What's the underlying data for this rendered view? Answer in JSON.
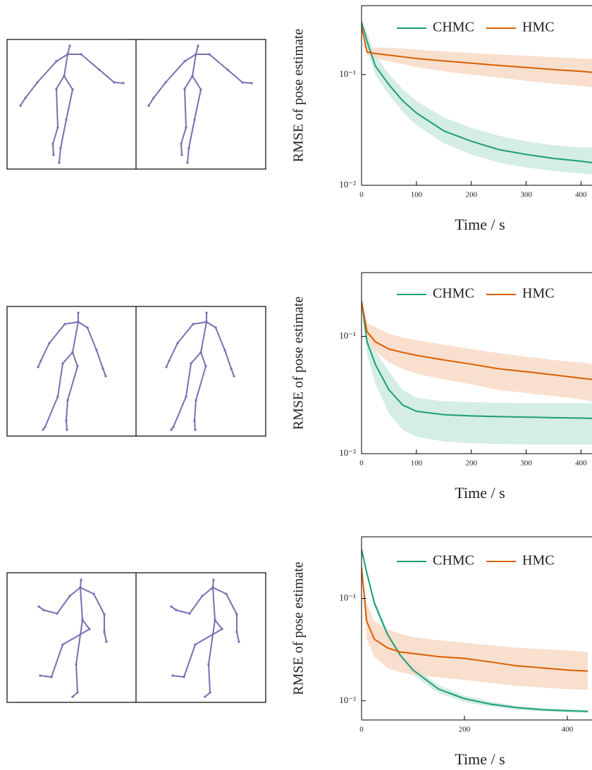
{
  "chart_data": [
    {
      "type": "line",
      "yscale": "log",
      "ylabel": "RMSE of pose estimate",
      "xlabel": "Time / s",
      "x": [
        0,
        10,
        25,
        50,
        75,
        100,
        150,
        200,
        250,
        300,
        350,
        400,
        420
      ],
      "xlim": [
        0,
        420
      ],
      "xticks": [
        0,
        100,
        200,
        300,
        400
      ],
      "ylim": [
        0.01,
        0.42
      ],
      "yticks": [
        {
          "value": 0.1,
          "label": "10⁻¹"
        },
        {
          "value": 0.01,
          "label": "10⁻²"
        }
      ],
      "series": [
        {
          "name": "CHMC",
          "color": "#1b9e77",
          "band_color": "#cdeae0",
          "values": [
            0.3,
            0.2,
            0.12,
            0.081,
            0.058,
            0.045,
            0.031,
            0.025,
            0.021,
            0.019,
            0.0175,
            0.0165,
            0.016
          ],
          "upper": [
            0.3,
            0.24,
            0.15,
            0.1,
            0.074,
            0.058,
            0.041,
            0.033,
            0.028,
            0.025,
            0.023,
            0.022,
            0.022
          ],
          "lower": [
            0.3,
            0.17,
            0.1,
            0.066,
            0.046,
            0.035,
            0.024,
            0.019,
            0.016,
            0.0145,
            0.0135,
            0.0128,
            0.0125
          ]
        },
        {
          "name": "HMC",
          "color": "#d95f02",
          "band_color": "#f8d9c5",
          "values": [
            0.27,
            0.16,
            0.155,
            0.15,
            0.145,
            0.14,
            0.133,
            0.127,
            0.121,
            0.116,
            0.111,
            0.107,
            0.105
          ],
          "upper": [
            0.27,
            0.17,
            0.175,
            0.175,
            0.172,
            0.168,
            0.162,
            0.157,
            0.152,
            0.148,
            0.144,
            0.14,
            0.138
          ],
          "lower": [
            0.27,
            0.15,
            0.14,
            0.132,
            0.124,
            0.117,
            0.107,
            0.1,
            0.094,
            0.088,
            0.083,
            0.079,
            0.077
          ]
        }
      ]
    },
    {
      "type": "line",
      "yscale": "log",
      "ylabel": "RMSE of pose estimate",
      "xlabel": "Time / s",
      "x": [
        0,
        10,
        25,
        50,
        75,
        100,
        150,
        200,
        250,
        300,
        350,
        400,
        420
      ],
      "xlim": [
        0,
        420
      ],
      "xticks": [
        0,
        100,
        200,
        300,
        400
      ],
      "ylim": [
        0.01,
        0.35
      ],
      "yticks": [
        {
          "value": 0.1,
          "label": "10⁻¹"
        },
        {
          "value": 0.01,
          "label": "10⁻²"
        }
      ],
      "series": [
        {
          "name": "CHMC",
          "color": "#1b9e77",
          "band_color": "#cdeae0",
          "values": [
            0.2,
            0.09,
            0.058,
            0.035,
            0.026,
            0.023,
            0.0215,
            0.021,
            0.0207,
            0.0205,
            0.0203,
            0.0201,
            0.02
          ],
          "upper": [
            0.2,
            0.11,
            0.075,
            0.05,
            0.035,
            0.03,
            0.028,
            0.0275,
            0.0272,
            0.027,
            0.027,
            0.027,
            0.027
          ],
          "lower": [
            0.2,
            0.07,
            0.04,
            0.022,
            0.016,
            0.014,
            0.0127,
            0.0123,
            0.0121,
            0.012,
            0.012,
            0.012,
            0.012
          ]
        },
        {
          "name": "HMC",
          "color": "#d95f02",
          "band_color": "#f8d9c5",
          "values": [
            0.2,
            0.11,
            0.09,
            0.078,
            0.073,
            0.069,
            0.063,
            0.058,
            0.053,
            0.05,
            0.047,
            0.044,
            0.043
          ],
          "upper": [
            0.2,
            0.13,
            0.12,
            0.105,
            0.098,
            0.093,
            0.085,
            0.078,
            0.072,
            0.067,
            0.063,
            0.06,
            0.058
          ],
          "lower": [
            0.2,
            0.095,
            0.075,
            0.06,
            0.053,
            0.048,
            0.043,
            0.039,
            0.035,
            0.033,
            0.031,
            0.029,
            0.028
          ]
        }
      ]
    },
    {
      "type": "line",
      "yscale": "log",
      "ylabel": "RMSE of pose estimate",
      "xlabel": "Time / s",
      "x": [
        0,
        10,
        25,
        50,
        75,
        100,
        150,
        200,
        250,
        300,
        350,
        400,
        440
      ],
      "xlim": [
        0,
        448
      ],
      "xticks": [
        0,
        200,
        400
      ],
      "ylim": [
        0.0065,
        0.4
      ],
      "yticks": [
        {
          "value": 0.1,
          "label": "10⁻¹"
        },
        {
          "value": 0.01,
          "label": "10⁻²"
        }
      ],
      "series": [
        {
          "name": "CHMC",
          "color": "#1b9e77",
          "band_color": "#cdeae0",
          "values": [
            0.3,
            0.18,
            0.09,
            0.045,
            0.028,
            0.02,
            0.013,
            0.0105,
            0.0093,
            0.0086,
            0.0082,
            0.008,
            0.0079
          ],
          "upper": [
            0.3,
            0.19,
            0.097,
            0.05,
            0.031,
            0.022,
            0.0142,
            0.0113,
            0.0099,
            0.009,
            0.0085,
            0.0083,
            0.0081
          ],
          "lower": [
            0.3,
            0.17,
            0.084,
            0.041,
            0.025,
            0.018,
            0.0119,
            0.0097,
            0.0088,
            0.0082,
            0.0079,
            0.0077,
            0.0076
          ]
        },
        {
          "name": "HMC",
          "color": "#d95f02",
          "band_color": "#f8d9c5",
          "values": [
            0.2,
            0.06,
            0.04,
            0.033,
            0.03,
            0.029,
            0.027,
            0.026,
            0.024,
            0.022,
            0.021,
            0.02,
            0.0195
          ],
          "upper": [
            0.2,
            0.09,
            0.06,
            0.05,
            0.045,
            0.042,
            0.039,
            0.037,
            0.035,
            0.033,
            0.032,
            0.031,
            0.03
          ],
          "lower": [
            0.2,
            0.04,
            0.027,
            0.021,
            0.019,
            0.018,
            0.017,
            0.016,
            0.015,
            0.014,
            0.0135,
            0.013,
            0.0128
          ]
        }
      ]
    }
  ]
}
